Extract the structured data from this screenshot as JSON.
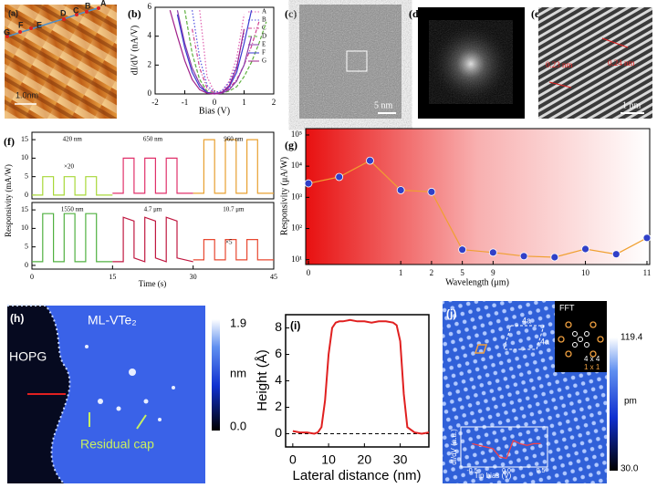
{
  "chart_data": [
    {
      "type": "line",
      "panel": "(b)",
      "xlabel": "Bias (V)",
      "ylabel": "dI/dV (nA/V)",
      "xlim": [
        -2,
        2
      ],
      "xticks": [
        -2,
        -1,
        0,
        1,
        2
      ],
      "ylim": [
        0,
        6
      ],
      "yticks": [
        0,
        2,
        4,
        6
      ],
      "legend": "upper right",
      "x": [
        -1.5,
        -1.25,
        -1,
        -0.75,
        -0.5,
        -0.25,
        0,
        0.25,
        0.5,
        0.75,
        1,
        1.25,
        1.5,
        1.75
      ],
      "series": [
        {
          "name": "A",
          "color": "#e060b0",
          "dash": "dotted",
          "values": [
            null,
            null,
            null,
            null,
            5.8,
            1.2,
            0.1,
            0.2,
            0.9,
            2.5,
            5.5,
            null,
            null,
            null
          ]
        },
        {
          "name": "B",
          "color": "#5050e0",
          "dash": "dotted",
          "values": [
            null,
            null,
            null,
            5.8,
            2.5,
            0.6,
            0.1,
            0.2,
            0.8,
            2,
            4.2,
            null,
            null,
            null
          ]
        },
        {
          "name": "C",
          "color": "#d04090",
          "dash": "dashdot",
          "values": [
            null,
            null,
            null,
            4.5,
            1.8,
            0.4,
            0.05,
            0.1,
            0.4,
            1,
            2,
            3.3,
            5,
            null
          ]
        },
        {
          "name": "D",
          "color": "#60b040",
          "dash": "dashed",
          "values": [
            null,
            null,
            5.8,
            2.8,
            1,
            0.2,
            0,
            0.05,
            0.2,
            0.5,
            1.2,
            2.2,
            3.5,
            5
          ]
        },
        {
          "name": "E",
          "color": "#8a3aa8",
          "dash": "solid",
          "values": [
            null,
            5.8,
            3.5,
            1.8,
            0.7,
            0.1,
            0,
            0.05,
            0.3,
            0.9,
            2,
            4,
            null,
            null
          ]
        },
        {
          "name": "F",
          "color": "#3a3ad0",
          "dash": "solid",
          "values": [
            null,
            5.5,
            3.2,
            1.5,
            0.5,
            0.1,
            0,
            0.1,
            0.5,
            1.5,
            3.5,
            5.8,
            null,
            null
          ]
        },
        {
          "name": "G",
          "color": "#a0208a",
          "dash": "solid",
          "values": [
            5.8,
            4,
            2.3,
            1,
            0.3,
            0.05,
            0,
            0.1,
            0.6,
            1.8,
            4.5,
            null,
            null,
            null
          ]
        }
      ]
    },
    {
      "type": "line",
      "panel": "(f)",
      "ylabel": "Responsivity (mA/W)",
      "xlim": [
        0,
        45
      ],
      "ylim": [
        -1,
        17
      ],
      "yticks": [
        0,
        5,
        10,
        15
      ],
      "series_labels": true,
      "annotations": [
        "×20"
      ],
      "series": [
        {
          "name": "420 nm",
          "color": "#a8d838",
          "x": [
            0,
            2,
            2,
            4,
            4,
            6,
            6,
            8,
            8,
            10,
            10,
            12,
            12,
            15
          ],
          "values": [
            0,
            0,
            5,
            5,
            0,
            0,
            5,
            5,
            0,
            0,
            5,
            5,
            0,
            0
          ]
        },
        {
          "name": "650 nm",
          "color": "#e0306a",
          "x": [
            15,
            17,
            17,
            19,
            19,
            21,
            21,
            23,
            23,
            25,
            25,
            27,
            27,
            30
          ],
          "values": [
            0.5,
            0.5,
            10,
            10,
            0.5,
            0.5,
            10,
            10,
            0.5,
            0.5,
            10,
            10,
            0.5,
            0.5
          ]
        },
        {
          "name": "960 nm",
          "color": "#e8a030",
          "x": [
            30,
            32,
            32,
            34,
            34,
            36,
            36,
            38,
            38,
            40,
            40,
            42,
            42,
            45
          ],
          "values": [
            0.5,
            0.5,
            15,
            15,
            0.5,
            0.5,
            15,
            15,
            0.5,
            0.5,
            15,
            15,
            0.5,
            0.5
          ]
        }
      ]
    },
    {
      "type": "line",
      "xlabel": "Time (s)",
      "xlim": [
        0,
        45
      ],
      "xticks": [
        0,
        15,
        30,
        45
      ],
      "ylim": [
        -1,
        17
      ],
      "yticks": [
        0,
        5,
        10,
        15
      ],
      "series_labels": true,
      "annotations": [
        "×5"
      ],
      "series": [
        {
          "name": "1550 nm",
          "color": "#50b040",
          "x": [
            0,
            2,
            2,
            4,
            4,
            6,
            6,
            8,
            8,
            10,
            10,
            12,
            12,
            15
          ],
          "values": [
            1,
            1,
            14,
            14,
            1,
            1,
            14,
            14,
            1,
            1,
            14,
            14,
            1,
            1
          ]
        },
        {
          "name": "4.7 μm",
          "color": "#c01840",
          "x": [
            15,
            17,
            17,
            19,
            19,
            21,
            21,
            23,
            23,
            25,
            25,
            27,
            27,
            30
          ],
          "values": [
            1,
            1,
            13,
            12,
            2,
            1,
            13,
            12,
            2,
            1,
            13,
            12,
            2,
            1
          ]
        },
        {
          "name": "10.7 μm",
          "color": "#e84830",
          "x": [
            30,
            32,
            32,
            34,
            34,
            36,
            36,
            38,
            38,
            40,
            40,
            42,
            42,
            45
          ],
          "values": [
            1.5,
            1.5,
            7,
            7,
            1.5,
            1.5,
            7,
            7,
            1.5,
            1.5,
            7,
            7,
            1.5,
            1.5
          ]
        }
      ]
    },
    {
      "type": "line",
      "panel": "(g)",
      "xlabel": "Wavelength (μm)",
      "ylabel": "Responsivity (μA/W)",
      "log_y": true,
      "markers": true,
      "marker_color": "#3040c8",
      "color": "#f0a030",
      "categories": [
        "0",
        null,
        null,
        "1",
        "2",
        "5",
        "9",
        null,
        null,
        "10",
        null,
        "11"
      ],
      "values": [
        2800,
        4500,
        15000,
        1700,
        1500,
        21,
        17,
        13,
        12,
        22,
        15,
        50
      ],
      "ylim": [
        7,
        160000
      ],
      "yticks": [
        {
          "value": 10,
          "label": "10¹"
        },
        {
          "value": 100,
          "label": "10²"
        },
        {
          "value": 1000,
          "label": "10³"
        },
        {
          "value": 10000,
          "label": "10⁴"
        },
        {
          "value": 100000,
          "label": "10⁵"
        }
      ]
    },
    {
      "type": "line",
      "panel": "(i)",
      "xlabel": "Lateral distance (nm)",
      "ylabel": "Height (Å)",
      "xlim": [
        -2,
        38
      ],
      "xticks": [
        0,
        10,
        20,
        30
      ],
      "ylim": [
        -1,
        9
      ],
      "yticks": [
        0,
        2,
        4,
        6,
        8
      ],
      "hline": 0,
      "color": "#e02020",
      "x": [
        0,
        2,
        4,
        6,
        7,
        8,
        9,
        10,
        11,
        12,
        13,
        14,
        16,
        18,
        20,
        22,
        24,
        26,
        28,
        29,
        30,
        31,
        32,
        34,
        36,
        38
      ],
      "values": [
        0.2,
        0.1,
        0.1,
        0,
        0.1,
        0.5,
        2.5,
        6,
        8,
        8.4,
        8.5,
        8.5,
        8.6,
        8.5,
        8.5,
        8.4,
        8.5,
        8.5,
        8.4,
        8.2,
        7,
        3,
        0.5,
        0.1,
        0,
        0.1
      ]
    },
    {
      "type": "line",
      "xlabel": "Tip bias (V)",
      "ylabel": "dI/dV (a.u.)",
      "xlim": [
        -0.6,
        0.6
      ],
      "xticks": [
        -0.5,
        {
          "value": 0,
          "label": "0.0"
        },
        0.5
      ],
      "ylim": [
        0,
        1
      ],
      "color": "#ff4040",
      "x": [
        -0.5,
        -0.4,
        -0.3,
        -0.2,
        -0.1,
        0,
        0.1,
        0.2,
        0.3,
        0.4,
        0.5
      ],
      "values": [
        0.6,
        0.55,
        0.5,
        0.45,
        0.2,
        0.15,
        0.7,
        0.6,
        0.55,
        0.6,
        0.6
      ]
    }
  ],
  "images": [
    {
      "panel": "(a)",
      "scale": "1.0nm",
      "points": [
        "A",
        "B",
        "C",
        "D",
        "E",
        "F",
        "G"
      ]
    },
    {
      "panel": "(c)",
      "scale": "5 nm"
    },
    {
      "panel": "(d)"
    },
    {
      "panel": "(e)",
      "annotations": [
        "0.23 nm",
        "0.24 nm"
      ],
      "scale": "1 nm"
    },
    {
      "panel": "(h)",
      "labels": [
        "HOPG",
        "ML-VTe₂",
        "Residual cap"
      ],
      "colorbar": {
        "max": "1.9",
        "unit": "nm",
        "min": "0.0"
      }
    },
    {
      "panel": "(j)",
      "labels": [
        "4a",
        "4a"
      ],
      "inset": {
        "title": "FFT",
        "labels": [
          "4 x 4",
          "1 x 1"
        ]
      },
      "colorbar": {
        "max": "119.4",
        "unit": "pm",
        "min": "30.0"
      }
    }
  ]
}
